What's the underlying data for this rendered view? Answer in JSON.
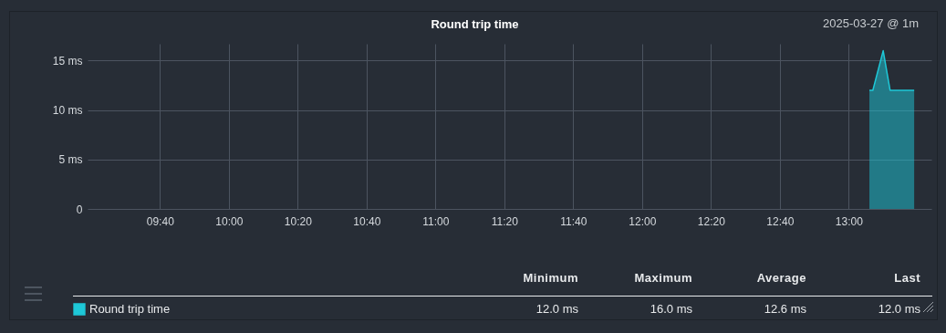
{
  "chart_data": {
    "type": "area",
    "title": "Round trip time",
    "subtitle": "2025-03-27 @ 1m",
    "x": [
      "2025-03-27T13:06",
      "2025-03-27T13:07",
      "2025-03-27T13:10",
      "2025-03-27T13:12",
      "2025-03-27T13:19"
    ],
    "series": [
      {
        "name": "Round trip time",
        "color": "#1ec8d8",
        "values": [
          12,
          12,
          16,
          12,
          12
        ]
      }
    ],
    "xlim": [
      "2025-03-27T09:19",
      "2025-03-27T13:24"
    ],
    "xticks": [
      {
        "value": "2025-03-27T09:40",
        "label": "09:40"
      },
      {
        "value": "2025-03-27T10:00",
        "label": "10:00"
      },
      {
        "value": "2025-03-27T10:20",
        "label": "10:20"
      },
      {
        "value": "2025-03-27T10:40",
        "label": "10:40"
      },
      {
        "value": "2025-03-27T11:00",
        "label": "11:00"
      },
      {
        "value": "2025-03-27T11:20",
        "label": "11:20"
      },
      {
        "value": "2025-03-27T11:40",
        "label": "11:40"
      },
      {
        "value": "2025-03-27T12:00",
        "label": "12:00"
      },
      {
        "value": "2025-03-27T12:20",
        "label": "12:20"
      },
      {
        "value": "2025-03-27T12:40",
        "label": "12:40"
      },
      {
        "value": "2025-03-27T13:00",
        "label": "13:00"
      }
    ],
    "ylim": [
      0,
      16.7
    ],
    "yticks": [
      {
        "value": 0,
        "label": "0"
      },
      {
        "value": 5,
        "label": "5 ms"
      },
      {
        "value": 10,
        "label": "10 ms"
      },
      {
        "value": 15,
        "label": "15 ms"
      }
    ],
    "grid": true,
    "legend": "bottom left",
    "annotations": [
      "Minimum",
      "Maximum",
      "Average",
      "Last",
      "12.0 ms",
      "16.0 ms",
      "12.6 ms",
      "12.0 ms"
    ]
  }
}
